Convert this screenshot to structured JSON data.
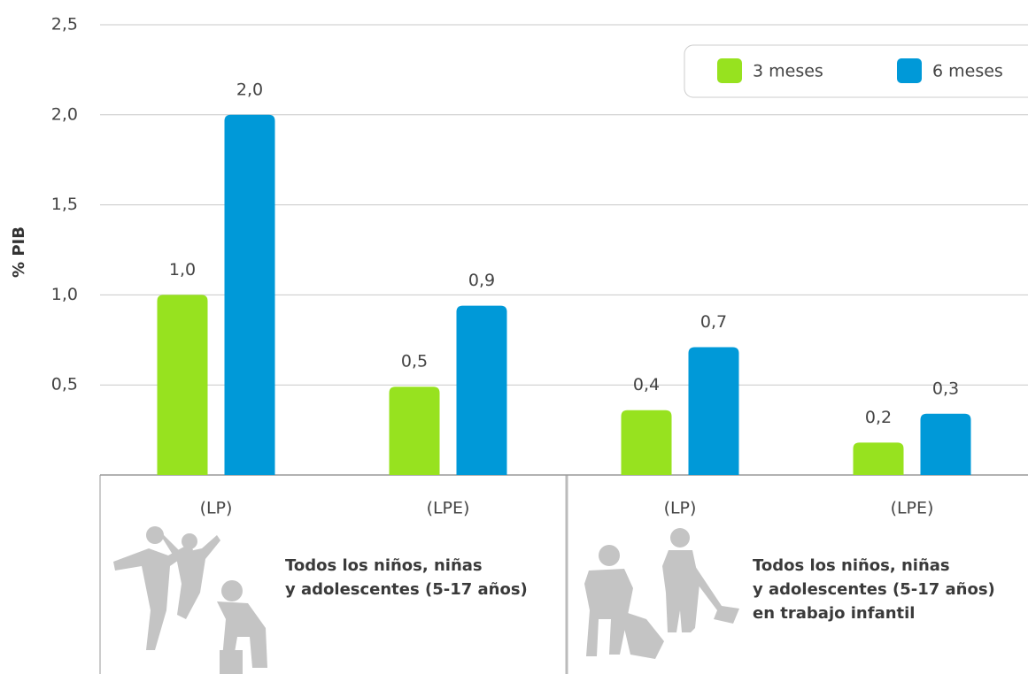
{
  "chart_data": {
    "type": "bar",
    "y_label": "% PIB",
    "categories": [
      "(LP)",
      "(LPE)",
      "(LP)",
      "(LPE)"
    ],
    "series": [
      {
        "name": "3 meses",
        "color": "#97e21f",
        "values": [
          1.0,
          0.49,
          0.36,
          0.18
        ],
        "value_labels": [
          "1,0",
          "0,5",
          "0,4",
          "0,2"
        ]
      },
      {
        "name": "6 meses",
        "color": "#0099d8",
        "values": [
          2.0,
          0.94,
          0.71,
          0.34
        ],
        "value_labels": [
          "2,0",
          "0,9",
          "0,7",
          "0,3"
        ]
      }
    ],
    "ylim": [
      0,
      2.5
    ],
    "yticks": [
      {
        "value": 0.5,
        "label": "0,5"
      },
      {
        "value": 1.0,
        "label": "1,0"
      },
      {
        "value": 1.5,
        "label": "1,5"
      },
      {
        "value": 2.0,
        "label": "2,0"
      },
      {
        "value": 2.5,
        "label": "2,5"
      }
    ],
    "grid": true,
    "legend": "upper right",
    "groups": [
      {
        "lines": [
          "Todos los niños, niñas",
          "y adolescentes (5-17 años)"
        ]
      },
      {
        "lines": [
          "Todos los niños, niñas",
          "y adolescentes (5-17 años)",
          "en trabajo infantil"
        ]
      }
    ]
  }
}
